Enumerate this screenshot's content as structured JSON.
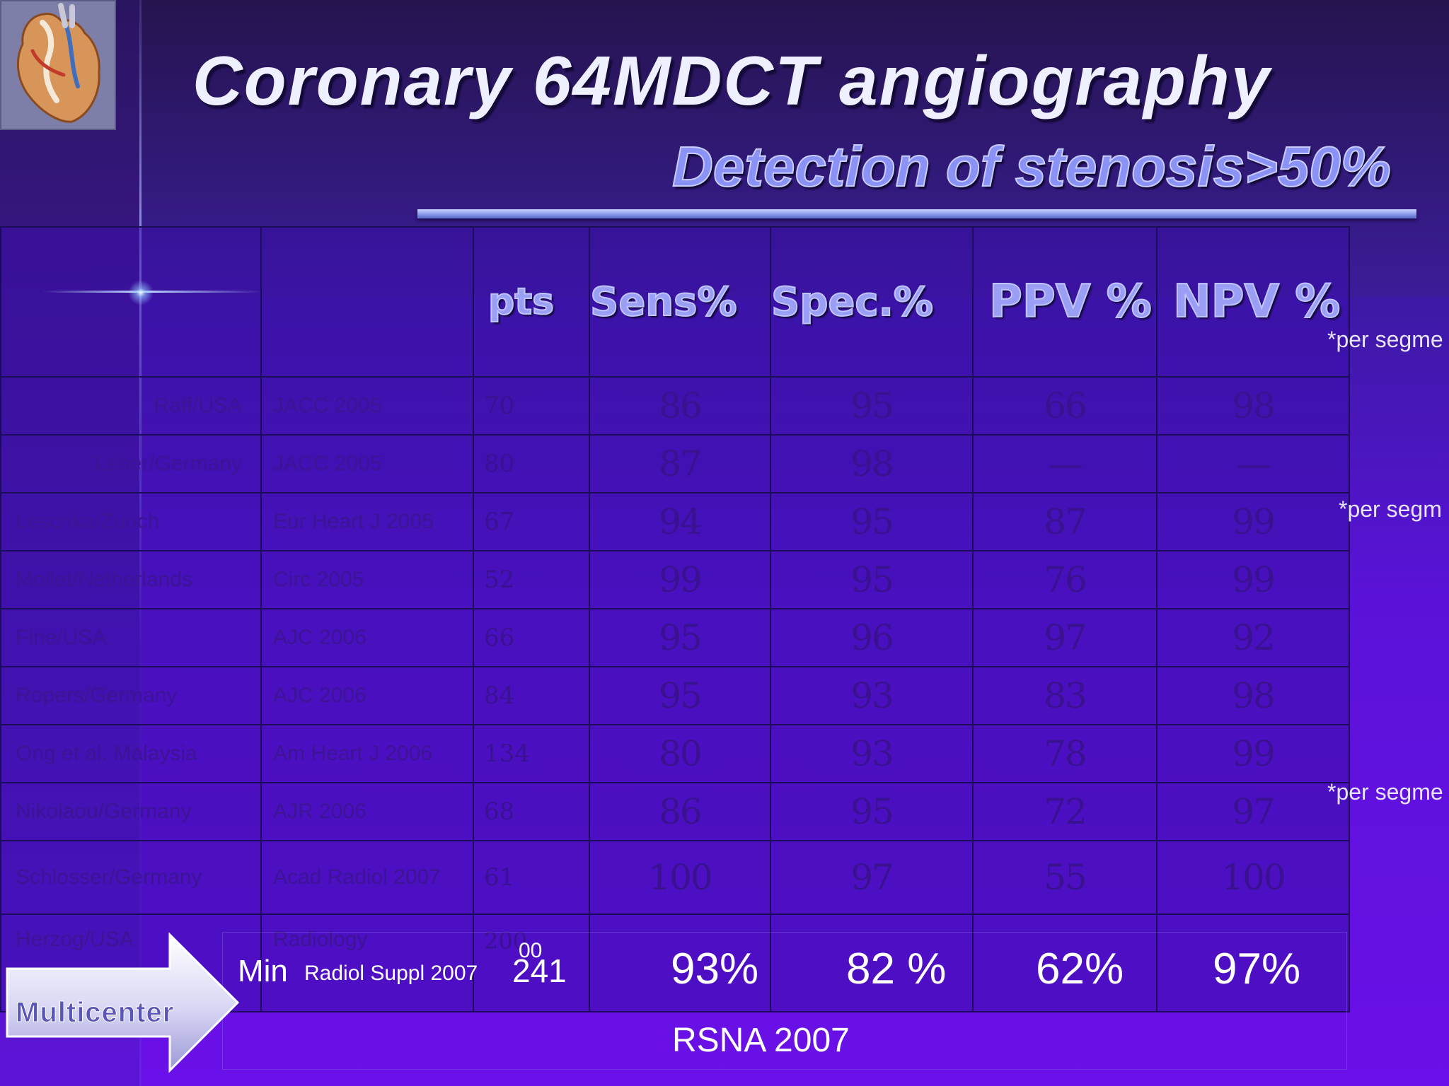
{
  "slide": {
    "title": "Coronary 64MDCT angiography",
    "subtitle": "Detection of stenosis>50%",
    "logo_icon": "heart-illustration-icon"
  },
  "table": {
    "headers": [
      "",
      "",
      "pts",
      "Sens%",
      "Spec.%",
      "PPV %",
      "NPV %"
    ],
    "rows": [
      {
        "name": "Raff/USA",
        "journal": "JACC 2005",
        "pts": "70",
        "sens": "86",
        "spec": "95",
        "ppv": "66",
        "npv": "98"
      },
      {
        "name": "Leber/Germany",
        "journal": "JACC 2005",
        "pts": "80",
        "sens": "87",
        "spec": "98",
        "ppv": "—",
        "npv": "—"
      },
      {
        "name": "Leschka/Zurich",
        "journal": "Eur Heart J 2005",
        "pts": "67",
        "sens": "94",
        "spec": "95",
        "ppv": "87",
        "npv": "99"
      },
      {
        "name": "Mollet/Netherlands",
        "journal": "Circ 2005",
        "pts": "52",
        "sens": "99",
        "spec": "95",
        "ppv": "76",
        "npv": "99"
      },
      {
        "name": "Fine/USA",
        "journal": "AJC 2006",
        "pts": "66",
        "sens": "95",
        "spec": "96",
        "ppv": "97",
        "npv": "92"
      },
      {
        "name": "Ropers/Germany",
        "journal": "AJC 2006",
        "pts": "84",
        "sens": "95",
        "spec": "93",
        "ppv": "83",
        "npv": "98"
      },
      {
        "name": "Ong et al. Malaysia",
        "journal": "Am Heart J 2006",
        "pts": "134",
        "sens": "80",
        "spec": "93",
        "ppv": "78",
        "npv": "99"
      },
      {
        "name": "Nikolaou/Germany",
        "journal": "AJR 2006",
        "pts": "68",
        "sens": "86",
        "spec": "95",
        "ppv": "72",
        "npv": "97"
      },
      {
        "name": "Schlosser/Germany",
        "journal": "Acad Radiol 2007",
        "pts": "61",
        "sens": "100",
        "spec": "97",
        "ppv": "55",
        "npv": "100"
      },
      {
        "name": "Herzog/USA",
        "journal": "Radiology",
        "pts": "200",
        "sens": "",
        "spec": "",
        "ppv": "",
        "npv": ""
      }
    ],
    "notes": [
      "*per segme",
      "*per segm",
      "*per segme"
    ]
  },
  "overlay": {
    "min": "Min",
    "source": "Radiol Suppl 2007",
    "pts_small": "00",
    "pts": "241",
    "sens": "93%",
    "spec": "82 %",
    "ppv": "62%",
    "npv": "97%",
    "footer": "RSNA 2007",
    "multicenter": "Multicenter"
  }
}
